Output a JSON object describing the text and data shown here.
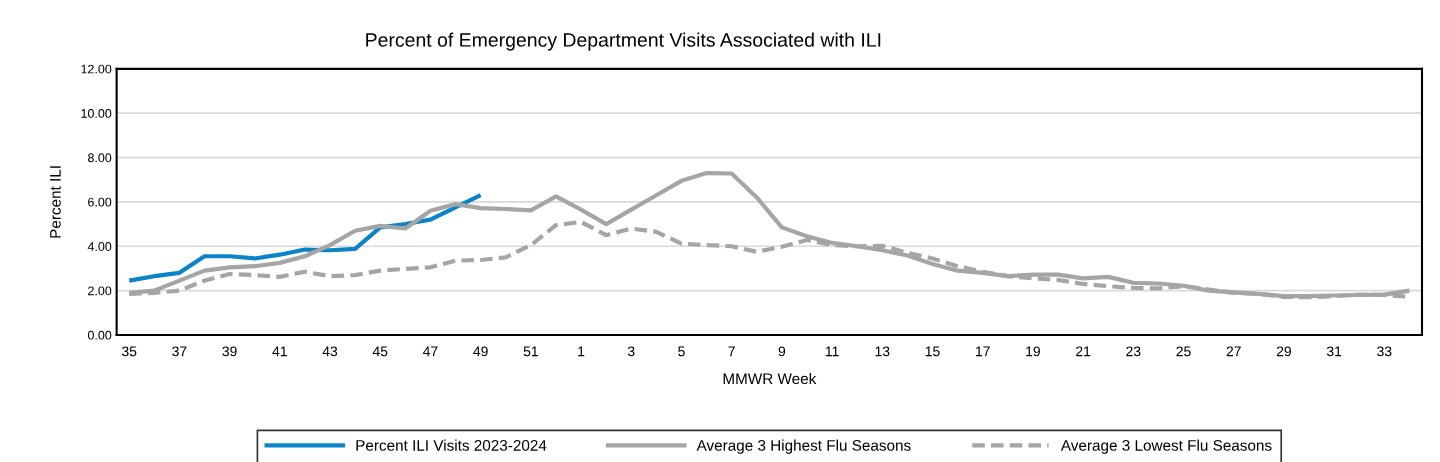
{
  "chart_data": {
    "type": "line",
    "title": "Percent of Emergency Department Visits Associated with ILI",
    "xlabel": "MMWR Week",
    "ylabel": "Percent ILI",
    "categories": [
      "35",
      null,
      "37",
      null,
      "39",
      null,
      "41",
      null,
      "43",
      null,
      "45",
      null,
      "47",
      null,
      "49",
      null,
      "51",
      null,
      "1",
      null,
      "3",
      null,
      "5",
      null,
      "7",
      null,
      "9",
      null,
      "11",
      null,
      "13",
      null,
      "15",
      null,
      "17",
      null,
      "19",
      null,
      "21",
      null,
      "23",
      null,
      "25",
      null,
      "27",
      null,
      "29",
      null,
      "31",
      null,
      "33",
      null
    ],
    "ylim": [
      0,
      12
    ],
    "yticks": [
      {
        "value": 0,
        "label": "0.00"
      },
      {
        "value": 2,
        "label": "2.00"
      },
      {
        "value": 4,
        "label": "4.00"
      },
      {
        "value": 6,
        "label": "6.00"
      },
      {
        "value": 8,
        "label": "8.00"
      },
      {
        "value": 10,
        "label": "10.00"
      },
      {
        "value": 12,
        "label": "12.00"
      }
    ],
    "grid": "y",
    "legend": "bottom",
    "marker": "none",
    "series": [
      {
        "name": "Percent ILI Visits 2023-2024",
        "color": "#0a84c8",
        "line_style": "solid",
        "values": [
          2.45,
          2.65,
          2.8,
          3.55,
          3.55,
          3.45,
          3.62,
          3.85,
          3.82,
          3.88,
          4.85,
          5.0,
          5.2,
          5.75,
          6.3,
          null,
          null,
          null,
          null,
          null,
          null,
          null,
          null,
          null,
          null,
          null,
          null,
          null,
          null,
          null,
          null,
          null,
          null,
          null,
          null,
          null,
          null,
          null,
          null,
          null,
          null,
          null,
          null,
          null,
          null,
          null,
          null,
          null,
          null,
          null,
          null,
          null
        ]
      },
      {
        "name": "Average 3 Highest Flu Seasons",
        "color": "#a5a5a5",
        "line_style": "solid",
        "values": [
          1.9,
          2.0,
          2.45,
          2.9,
          3.05,
          3.1,
          3.25,
          3.55,
          4.05,
          4.7,
          4.92,
          4.8,
          5.6,
          5.9,
          5.72,
          5.68,
          5.62,
          6.25,
          5.65,
          5.0,
          5.65,
          6.3,
          6.95,
          7.3,
          7.28,
          6.2,
          4.85,
          4.45,
          4.15,
          4.0,
          3.82,
          3.58,
          3.2,
          2.9,
          2.8,
          2.65,
          2.72,
          2.72,
          2.55,
          2.62,
          2.35,
          2.32,
          2.22,
          2.0,
          1.92,
          1.85,
          1.75,
          1.75,
          1.78,
          1.8,
          1.82,
          2.0
        ]
      },
      {
        "name": "Average 3 Lowest Flu Seasons",
        "color": "#a5a5a5",
        "line_style": "dashed",
        "values": [
          1.85,
          1.9,
          2.0,
          2.45,
          2.75,
          2.7,
          2.62,
          2.85,
          2.65,
          2.7,
          2.9,
          2.98,
          3.05,
          3.35,
          3.38,
          3.5,
          4.05,
          4.95,
          5.1,
          4.5,
          4.8,
          4.65,
          4.12,
          4.05,
          4.0,
          3.75,
          3.98,
          4.28,
          4.05,
          4.0,
          4.02,
          3.7,
          3.45,
          3.1,
          2.85,
          2.65,
          2.55,
          2.48,
          2.3,
          2.2,
          2.12,
          2.1,
          2.2,
          2.05,
          1.9,
          1.85,
          1.72,
          1.7,
          1.75,
          1.82,
          1.8,
          1.72
        ]
      }
    ]
  }
}
